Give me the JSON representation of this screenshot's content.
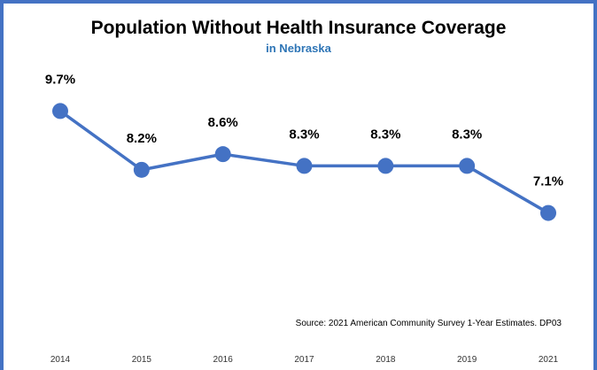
{
  "colors": {
    "accent": "#4472C4",
    "subtitle": "#2E75B6",
    "text": "#000000"
  },
  "chart_data": {
    "type": "line",
    "title": "Population Without Health Insurance Coverage",
    "subtitle": "in Nebraska",
    "source": "Source: 2021 American Community Survey 1-Year Estimates. DP03",
    "categories": [
      "2014",
      "2015",
      "2016",
      "2017",
      "2018",
      "2019",
      "2021"
    ],
    "series": [
      {
        "values": [
          9.7,
          8.2,
          8.6,
          8.3,
          8.3,
          8.3,
          7.1
        ],
        "labels": [
          "9.7%",
          "8.2%",
          "8.6%",
          "8.3%",
          "8.3%",
          "8.3%",
          "7.1%"
        ]
      }
    ],
    "ylim": [
      3.5,
      10.5
    ],
    "grid": false,
    "legend": "none"
  }
}
